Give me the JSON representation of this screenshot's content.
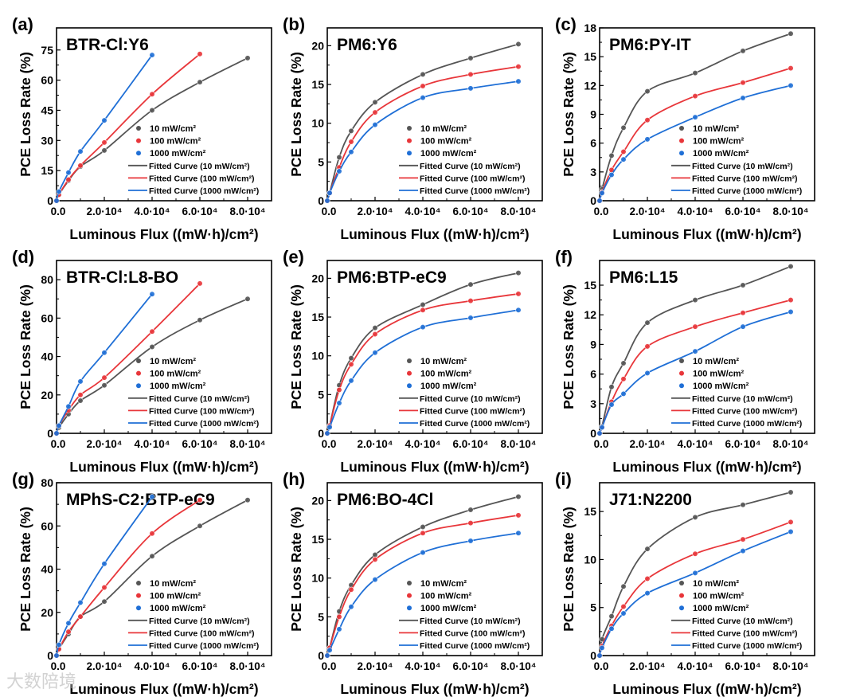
{
  "watermark": "大数陪境",
  "colors": {
    "10 mW/cm²": "#555555",
    "100 mW/cm²": "#e8363a",
    "1000 mW/cm²": "#1f6fd6"
  },
  "legend": {
    "scatter": [
      "10 mW/cm²",
      "100 mW/cm²",
      "1000 mW/cm²"
    ],
    "lines": [
      "Fitted Curve (10 mW/cm²)",
      "Fitted Curve (100 mW/cm²)",
      "Fitted Curve (1000 mW/cm²)"
    ]
  },
  "chart_data": [
    {
      "type": "scatter",
      "panel": "(a)",
      "title": "BTR-Cl:Y6",
      "xlabel": "Luminous Flux ((mW·h)/cm²)",
      "ylabel": "PCE Loss Rate (%)",
      "xlim": [
        0,
        90000
      ],
      "ylim": [
        0,
        86
      ],
      "yticks": [
        0,
        15,
        30,
        45,
        60,
        75
      ],
      "xticks": [
        0,
        20000,
        40000,
        60000,
        80000
      ],
      "xtick_labels": [
        "0.0",
        "2.0·10⁴",
        "4.0·10⁴",
        "6.0·10⁴",
        "8.0·10⁴"
      ],
      "x": [
        0,
        1000,
        5000,
        10000,
        20000,
        40000,
        60000,
        80000
      ],
      "series": [
        {
          "name": "10 mW/cm²",
          "values": [
            0,
            3,
            10,
            17,
            25,
            45,
            59,
            71
          ]
        },
        {
          "name": "100 mW/cm²",
          "values": [
            0,
            3,
            10.5,
            17.5,
            29,
            53,
            73
          ]
        },
        {
          "name": "1000 mW/cm²",
          "values": [
            0,
            4.5,
            14,
            24.5,
            40,
            72.5
          ]
        }
      ]
    },
    {
      "type": "scatter",
      "panel": "(b)",
      "title": "PM6:Y6",
      "xlabel": "Luminous Flux ((mW·h)/cm²)",
      "ylabel": "PCE Loss Rate (%)",
      "xlim": [
        0,
        90000
      ],
      "ylim": [
        0,
        22.3
      ],
      "yticks": [
        0,
        5,
        10,
        15,
        20
      ],
      "xticks": [
        0,
        20000,
        40000,
        60000,
        80000
      ],
      "xtick_labels": [
        "0.0",
        "2.0·10⁴",
        "4.0·10⁴",
        "6.0·10⁴",
        "8.0·10⁴"
      ],
      "x": [
        0,
        1000,
        5000,
        10000,
        20000,
        40000,
        60000,
        80000
      ],
      "series": [
        {
          "name": "10 mW/cm²",
          "values": [
            0,
            1,
            5.6,
            9,
            12.7,
            16.3,
            18.4,
            20.2
          ]
        },
        {
          "name": "100 mW/cm²",
          "values": [
            0,
            1,
            4.3,
            7.6,
            11.4,
            14.8,
            16.3,
            17.3
          ]
        },
        {
          "name": "1000 mW/cm²",
          "values": [
            0,
            1,
            3.8,
            6.3,
            9.8,
            13.3,
            14.5,
            15.4
          ]
        }
      ]
    },
    {
      "type": "scatter",
      "panel": "(c)",
      "title": "PM6:PY-IT",
      "xlabel": "Luminous Flux ((mW·h)/cm²)",
      "ylabel": "PCE Loss Rate (%)",
      "xlim": [
        0,
        90000
      ],
      "ylim": [
        0,
        18
      ],
      "yticks": [
        0,
        3,
        6,
        9,
        12,
        15,
        18
      ],
      "xticks": [
        0,
        20000,
        40000,
        60000,
        80000
      ],
      "xtick_labels": [
        "0.0",
        "2.0·10⁴",
        "4.0·10⁴",
        "6.0·10⁴",
        "8.0·10⁴"
      ],
      "x": [
        0,
        1000,
        5000,
        10000,
        20000,
        40000,
        60000,
        80000
      ],
      "series": [
        {
          "name": "10 mW/cm²",
          "values": [
            0,
            1.2,
            4.7,
            7.6,
            11.4,
            13.3,
            15.6,
            17.4
          ]
        },
        {
          "name": "100 mW/cm²",
          "values": [
            0,
            0.9,
            3.2,
            5.1,
            8.4,
            10.9,
            12.3,
            13.8
          ]
        },
        {
          "name": "1000 mW/cm²",
          "values": [
            0,
            0.8,
            2.7,
            4.3,
            6.4,
            8.7,
            10.7,
            12.0
          ]
        }
      ]
    },
    {
      "type": "scatter",
      "panel": "(d)",
      "title": "BTR-Cl:L8-BO",
      "xlabel": "Luminous Flux ((mW·h)/cm²)",
      "ylabel": "PCE Loss Rate (%)",
      "xlim": [
        0,
        90000
      ],
      "ylim": [
        0,
        90
      ],
      "yticks": [
        0,
        20,
        40,
        60,
        80
      ],
      "xticks": [
        0,
        20000,
        40000,
        60000,
        80000
      ],
      "xtick_labels": [
        "0.0",
        "2.0·10⁴",
        "4.0·10⁴",
        "6.0·10⁴",
        "8.0·10⁴"
      ],
      "x": [
        0,
        1000,
        5000,
        10000,
        20000,
        40000,
        60000,
        80000
      ],
      "series": [
        {
          "name": "10 mW/cm²",
          "values": [
            0,
            3,
            10,
            17,
            25,
            45,
            59,
            70
          ]
        },
        {
          "name": "100 mW/cm²",
          "values": [
            0,
            4,
            12,
            20,
            29,
            53,
            78
          ]
        },
        {
          "name": "1000 mW/cm²",
          "values": [
            0,
            4,
            14,
            27,
            42,
            72.5
          ]
        }
      ]
    },
    {
      "type": "scatter",
      "panel": "(e)",
      "title": "PM6:BTP-eC9",
      "xlabel": "Luminous Flux ((mW·h)/cm²)",
      "ylabel": "PCE Loss Rate (%)",
      "xlim": [
        0,
        90000
      ],
      "ylim": [
        0,
        22.3
      ],
      "yticks": [
        0,
        5,
        10,
        15,
        20
      ],
      "xticks": [
        0,
        20000,
        40000,
        60000,
        80000
      ],
      "xtick_labels": [
        "0.0",
        "2.0·10⁴",
        "4.0·10⁴",
        "6.0·10⁴",
        "8.0·10⁴"
      ],
      "x": [
        0,
        1000,
        5000,
        10000,
        20000,
        40000,
        60000,
        80000
      ],
      "series": [
        {
          "name": "10 mW/cm²",
          "values": [
            0,
            1,
            6.2,
            9.7,
            13.6,
            16.6,
            19.2,
            20.7
          ]
        },
        {
          "name": "100 mW/cm²",
          "values": [
            0,
            1,
            5.6,
            8.9,
            12.8,
            15.9,
            17.1,
            18
          ]
        },
        {
          "name": "1000 mW/cm²",
          "values": [
            0,
            0.8,
            3.9,
            6.8,
            10.4,
            13.7,
            14.9,
            15.9
          ]
        }
      ]
    },
    {
      "type": "scatter",
      "panel": "(f)",
      "title": "PM6:L15",
      "xlabel": "Luminous Flux ((mW·h)/cm²)",
      "ylabel": "PCE Loss Rate (%)",
      "xlim": [
        0,
        90000
      ],
      "ylim": [
        0,
        17.5
      ],
      "yticks": [
        0,
        3,
        6,
        9,
        12,
        15
      ],
      "xticks": [
        0,
        20000,
        40000,
        60000,
        80000
      ],
      "xtick_labels": [
        "0.0",
        "2.0·10⁴",
        "4.0·10⁴",
        "6.0·10⁴",
        "8.0·10⁴"
      ],
      "x": [
        0,
        1000,
        5000,
        10000,
        20000,
        40000,
        60000,
        80000
      ],
      "series": [
        {
          "name": "10 mW/cm²",
          "values": [
            0,
            0.7,
            4.7,
            7.1,
            11.2,
            13.5,
            15.0,
            16.9
          ]
        },
        {
          "name": "100 mW/cm²",
          "values": [
            0,
            0.6,
            3.2,
            5.5,
            8.8,
            10.8,
            12.2,
            13.5
          ]
        },
        {
          "name": "1000 mW/cm²",
          "values": [
            0,
            0.6,
            2.9,
            4.0,
            6.1,
            8.3,
            10.8,
            12.3
          ]
        }
      ]
    },
    {
      "type": "scatter",
      "panel": "(g)",
      "title": "MPhS-C2:BTP-eC9",
      "xlabel": "Luminous Flux ((mW·h)/cm²)",
      "ylabel": "PCE Loss Rate (%)",
      "xlim": [
        0,
        90000
      ],
      "ylim": [
        0,
        80
      ],
      "yticks": [
        0,
        20,
        40,
        60,
        80
      ],
      "xticks": [
        0,
        20000,
        40000,
        60000,
        80000
      ],
      "xtick_labels": [
        "0.0",
        "2.0·10⁴",
        "4.0·10⁴",
        "6.0·10⁴",
        "8.0·10⁴"
      ],
      "x": [
        0,
        1000,
        5000,
        10000,
        20000,
        40000,
        60000,
        80000
      ],
      "series": [
        {
          "name": "10 mW/cm²",
          "values": [
            0,
            3,
            10,
            18,
            25,
            46,
            60,
            72
          ]
        },
        {
          "name": "100 mW/cm²",
          "values": [
            0,
            3,
            11,
            18,
            31.5,
            56.5,
            72
          ]
        },
        {
          "name": "1000 mW/cm²",
          "values": [
            0,
            5,
            15,
            24.5,
            42.5,
            73.5
          ]
        }
      ]
    },
    {
      "type": "scatter",
      "panel": "(h)",
      "title": "PM6:BO-4Cl",
      "xlabel": "Luminous Flux ((mW·h)/cm²)",
      "ylabel": "PCE Loss Rate (%)",
      "xlim": [
        0,
        90000
      ],
      "ylim": [
        0,
        22.3
      ],
      "yticks": [
        0,
        5,
        10,
        15,
        20
      ],
      "xticks": [
        0,
        20000,
        40000,
        60000,
        80000
      ],
      "xtick_labels": [
        "0.0",
        "2.0·10⁴",
        "4.0·10⁴",
        "6.0·10⁴",
        "8.0·10⁴"
      ],
      "x": [
        0,
        1000,
        5000,
        10000,
        20000,
        40000,
        60000,
        80000
      ],
      "series": [
        {
          "name": "10 mW/cm²",
          "values": [
            0,
            1,
            5.7,
            9.1,
            13,
            16.6,
            18.8,
            20.5
          ]
        },
        {
          "name": "100 mW/cm²",
          "values": [
            0,
            1,
            5,
            8.5,
            12.4,
            15.8,
            17.1,
            18.1
          ]
        },
        {
          "name": "1000 mW/cm²",
          "values": [
            0,
            0.7,
            3.4,
            6.3,
            9.8,
            13.3,
            14.8,
            15.8
          ]
        }
      ]
    },
    {
      "type": "scatter",
      "panel": "(i)",
      "title": "J71:N2200",
      "xlabel": "Luminous Flux ((mW·h)/cm²)",
      "ylabel": "PCE Loss Rate (%)",
      "xlim": [
        0,
        90000
      ],
      "ylim": [
        0,
        18
      ],
      "yticks": [
        0,
        5,
        10,
        15
      ],
      "xticks": [
        0,
        20000,
        40000,
        60000,
        80000
      ],
      "xtick_labels": [
        "0.0",
        "2.0·10⁴",
        "4.0·10⁴",
        "6.0·10⁴",
        "8.0·10⁴"
      ],
      "x": [
        0,
        1000,
        5000,
        10000,
        20000,
        40000,
        60000,
        80000
      ],
      "series": [
        {
          "name": "10 mW/cm²",
          "values": [
            0,
            1.7,
            4.1,
            7.2,
            11.1,
            14.4,
            15.7,
            17
          ]
        },
        {
          "name": "100 mW/cm²",
          "values": [
            0,
            1,
            3.1,
            5.1,
            8,
            10.6,
            12.1,
            13.9
          ]
        },
        {
          "name": "1000 mW/cm²",
          "values": [
            0,
            0.8,
            2.8,
            4.4,
            6.5,
            8.6,
            10.9,
            12.9
          ]
        }
      ]
    }
  ]
}
